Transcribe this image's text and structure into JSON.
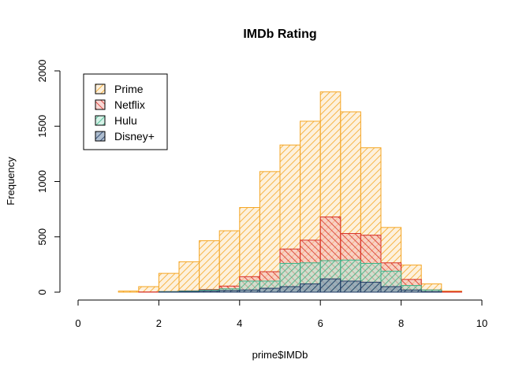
{
  "chart_data": {
    "type": "histogram",
    "title": "IMDb Rating",
    "xlabel": "prime$IMDb",
    "ylabel": "Frequency",
    "xlim": [
      0,
      10
    ],
    "ylim": [
      0,
      2000
    ],
    "x_ticks": [
      0,
      2,
      4,
      6,
      8,
      10
    ],
    "y_ticks": [
      0,
      500,
      1000,
      1500,
      2000
    ],
    "bins": [
      "0-0.5",
      "0.5-1",
      "1-1.5",
      "1.5-2",
      "2-2.5",
      "2.5-3",
      "3-3.5",
      "3.5-4",
      "4-4.5",
      "4.5-5",
      "5-5.5",
      "5.5-6",
      "6-6.5",
      "6.5-7",
      "7-7.5",
      "7.5-8",
      "8-8.5",
      "8.5-9",
      "9-9.5"
    ],
    "bin_starts": [
      0,
      0.5,
      1,
      1.5,
      2,
      2.5,
      3,
      3.5,
      4,
      4.5,
      5,
      5.5,
      6,
      6.5,
      7,
      7.5,
      8,
      8.5,
      9
    ],
    "bin_width": 0.5,
    "series": [
      {
        "name": "Prime",
        "color": "#f5a623",
        "fill": "#fbe5c0",
        "hatch": "right",
        "values": [
          0,
          0,
          10,
          50,
          170,
          275,
          465,
          555,
          765,
          1090,
          1330,
          1545,
          1810,
          1630,
          1305,
          585,
          245,
          75,
          10
        ]
      },
      {
        "name": "Netflix",
        "color": "#d73027",
        "fill": "#f4b6b0",
        "hatch": "left",
        "values": [
          0,
          0,
          0,
          2,
          5,
          12,
          25,
          55,
          140,
          185,
          390,
          470,
          680,
          530,
          515,
          265,
          115,
          20,
          5
        ]
      },
      {
        "name": "Hulu",
        "color": "#3cb58a",
        "fill": "#b2e6d2",
        "hatch": "right",
        "values": [
          0,
          0,
          0,
          0,
          5,
          10,
          20,
          30,
          100,
          100,
          260,
          265,
          285,
          290,
          260,
          190,
          60,
          20,
          0
        ]
      },
      {
        "name": "Disney+",
        "color": "#1f3a63",
        "fill": "#6b87a8",
        "hatch": "right",
        "values": [
          0,
          0,
          0,
          0,
          2,
          5,
          10,
          15,
          20,
          35,
          50,
          75,
          120,
          100,
          90,
          50,
          20,
          5,
          0
        ]
      }
    ],
    "legend_position": "top-left",
    "grid": false
  }
}
